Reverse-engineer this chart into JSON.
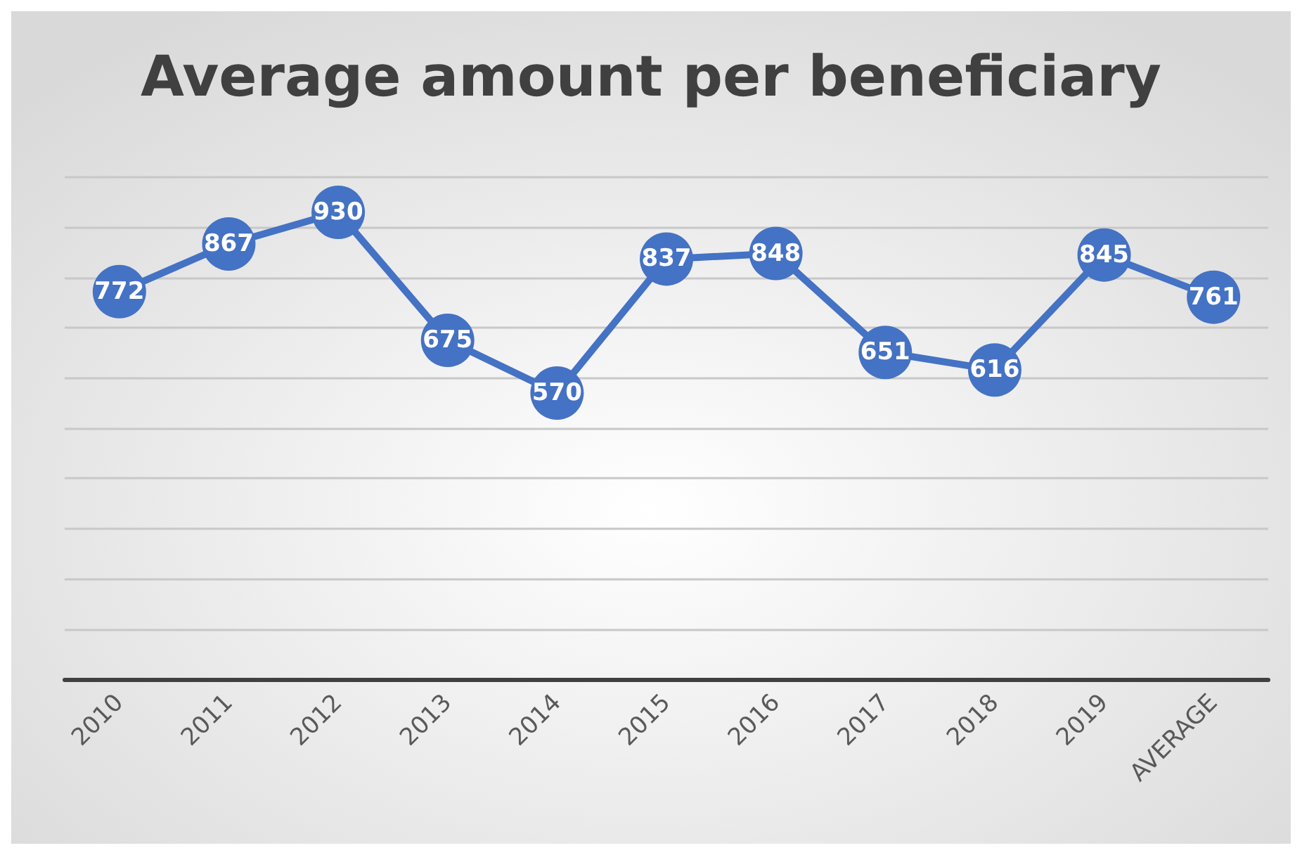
{
  "chart_data": {
    "type": "line",
    "title": "Average amount per beneficiary",
    "categories": [
      "2010",
      "2011",
      "2012",
      "2013",
      "2014",
      "2015",
      "2016",
      "2017",
      "2018",
      "2019",
      "AVERAGE"
    ],
    "series": [
      {
        "color": "#4472c4",
        "values": [
          772,
          867,
          930,
          675,
          570,
          837,
          848,
          651,
          616,
          845,
          761
        ]
      }
    ],
    "ylim": [
      0,
      1000
    ],
    "yticks": [
      {
        "value": 0,
        "label": null
      },
      {
        "value": 100,
        "label": null
      },
      {
        "value": 200,
        "label": null
      },
      {
        "value": 300,
        "label": null
      },
      {
        "value": 400,
        "label": null
      },
      {
        "value": 500,
        "label": null
      },
      {
        "value": 600,
        "label": null
      },
      {
        "value": 700,
        "label": null
      },
      {
        "value": 800,
        "label": null
      },
      {
        "value": 900,
        "label": null
      },
      {
        "value": 1000,
        "label": null
      }
    ],
    "tick_labels": "x",
    "grid": "y",
    "data_labels": true,
    "marker": "circle",
    "line_style": "solid"
  }
}
